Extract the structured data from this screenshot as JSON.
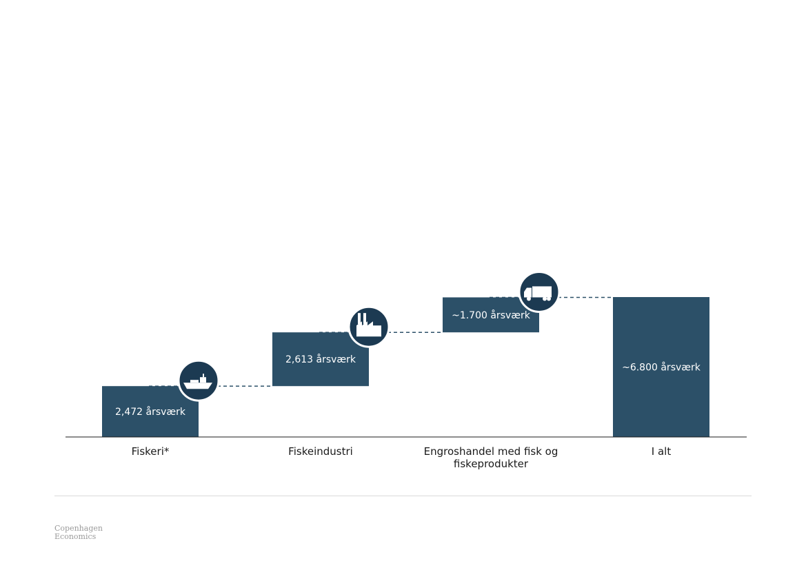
{
  "chart_data": {
    "type": "bar",
    "subtype": "waterfall",
    "categories": [
      "Fiskeri*",
      "Fiskeindustri",
      "Engroshandel med fisk og fiskeprodukter",
      "I alt"
    ],
    "category_lines": [
      [
        "Fiskeri*"
      ],
      [
        "Fiskeindustri"
      ],
      [
        "Engroshandel med fisk og",
        "fiskeprodukter"
      ],
      [
        "I alt"
      ]
    ],
    "values": [
      2472,
      2613,
      1700,
      6800
    ],
    "data_labels": [
      "2,472 årsværk",
      "2,613 årsværk",
      "~1.700 årsværk",
      "~6.800 årsværk"
    ],
    "icons": [
      "ship-icon",
      "factory-icon",
      "truck-icon"
    ],
    "title": "",
    "xlabel": "",
    "ylabel": "",
    "ylim": [
      0,
      6800
    ],
    "grid": false,
    "legend": "none",
    "colors": {
      "bar": "#2c5068",
      "icon_bg": "#1c3a52",
      "connector": "#2c5068",
      "axis": "#1a1a1a"
    }
  },
  "footer": {
    "brand_line1": "Copenhagen",
    "brand_line2": "Economics"
  }
}
